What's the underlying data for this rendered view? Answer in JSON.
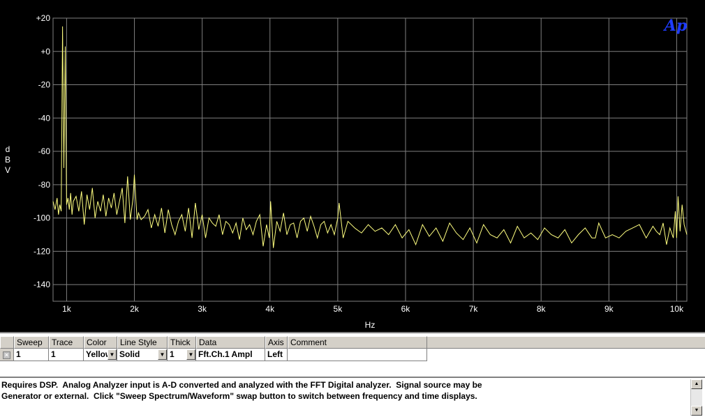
{
  "chart_data": {
    "type": "line",
    "title": "",
    "xlabel": "Hz",
    "ylabel": "dBV",
    "ylabel_chars": [
      "d",
      "B",
      "V"
    ],
    "logo_text": "Ap",
    "xlim": [
      800,
      10150
    ],
    "ylim": [
      -150,
      20
    ],
    "xticks": [
      1000,
      2000,
      3000,
      4000,
      5000,
      6000,
      7000,
      8000,
      9000,
      10000
    ],
    "xtick_labels": [
      "1k",
      "2k",
      "3k",
      "4k",
      "5k",
      "6k",
      "7k",
      "8k",
      "9k",
      "10k"
    ],
    "yticks": [
      20,
      0,
      -20,
      -40,
      -60,
      -80,
      -100,
      -120,
      -140
    ],
    "ytick_labels": [
      "+20",
      "+0",
      "-20",
      "-40",
      "-60",
      "-80",
      "-100",
      "-120",
      "-140"
    ],
    "grid": true,
    "colors": {
      "background": "#000000",
      "grid": "#7f7f7f",
      "trace": "#ffff80",
      "logo": "#1e3cff"
    },
    "series": [
      {
        "x": [
          800,
          830,
          860,
          880,
          900,
          920,
          940,
          960,
          980,
          1000,
          1020,
          1040,
          1060,
          1080,
          1100,
          1140,
          1180,
          1220,
          1260,
          1300,
          1340,
          1380,
          1420,
          1460,
          1500,
          1540,
          1580,
          1620,
          1660,
          1700,
          1740,
          1780,
          1820,
          1860,
          1900,
          1940,
          1980,
          2000,
          2020,
          2040,
          2060,
          2100,
          2150,
          2200,
          2250,
          2300,
          2350,
          2400,
          2450,
          2500,
          2550,
          2600,
          2650,
          2700,
          2750,
          2800,
          2850,
          2900,
          2950,
          3000,
          3050,
          3100,
          3150,
          3200,
          3250,
          3300,
          3350,
          3400,
          3450,
          3500,
          3550,
          3600,
          3650,
          3700,
          3750,
          3800,
          3850,
          3900,
          3950,
          3990,
          4010,
          4050,
          4100,
          4150,
          4200,
          4250,
          4300,
          4350,
          4400,
          4450,
          4500,
          4550,
          4600,
          4650,
          4700,
          4750,
          4800,
          4850,
          4900,
          4950,
          5000,
          5020,
          5080,
          5150,
          5250,
          5350,
          5450,
          5550,
          5650,
          5750,
          5850,
          5950,
          6050,
          6150,
          6250,
          6350,
          6450,
          6550,
          6650,
          6750,
          6850,
          6950,
          7050,
          7150,
          7250,
          7350,
          7450,
          7550,
          7650,
          7750,
          7850,
          7950,
          8050,
          8150,
          8250,
          8350,
          8450,
          8550,
          8650,
          8750,
          8800,
          8850,
          8950,
          9050,
          9150,
          9250,
          9350,
          9450,
          9550,
          9650,
          9700,
          9750,
          9800,
          9850,
          9900,
          9950,
          9980,
          10000,
          10020,
          10050,
          10080,
          10110,
          10150
        ],
        "y": [
          -90,
          -95,
          -88,
          -98,
          -92,
          -96,
          15,
          -70,
          3,
          -92,
          -88,
          -95,
          -85,
          -98,
          -90,
          -87,
          -96,
          -84,
          -104,
          -86,
          -95,
          -82,
          -100,
          -90,
          -96,
          -86,
          -99,
          -88,
          -94,
          -85,
          -98,
          -90,
          -82,
          -103,
          -75,
          -101,
          -88,
          -74,
          -88,
          -101,
          -97,
          -101,
          -99,
          -95,
          -106,
          -98,
          -105,
          -94,
          -109,
          -95,
          -104,
          -110,
          -102,
          -98,
          -108,
          -94,
          -112,
          -91,
          -107,
          -98,
          -112,
          -100,
          -103,
          -105,
          -98,
          -110,
          -102,
          -104,
          -109,
          -103,
          -113,
          -100,
          -107,
          -104,
          -110,
          -102,
          -98,
          -117,
          -104,
          -112,
          -90,
          -118,
          -102,
          -108,
          -97,
          -110,
          -104,
          -103,
          -112,
          -102,
          -100,
          -108,
          -99,
          -105,
          -112,
          -104,
          -102,
          -109,
          -104,
          -110,
          -100,
          -91,
          -112,
          -102,
          -106,
          -109,
          -104,
          -108,
          -106,
          -110,
          -104,
          -112,
          -107,
          -116,
          -104,
          -111,
          -106,
          -114,
          -103,
          -109,
          -113,
          -106,
          -115,
          -104,
          -110,
          -112,
          -107,
          -115,
          -105,
          -112,
          -109,
          -113,
          -106,
          -110,
          -112,
          -107,
          -115,
          -110,
          -106,
          -112,
          -112,
          -103,
          -112,
          -110,
          -112,
          -108,
          -106,
          -104,
          -112,
          -105,
          -108,
          -110,
          -103,
          -116,
          -106,
          -112,
          -96,
          -112,
          -87,
          -108,
          -92,
          -104,
          -110
        ]
      }
    ]
  },
  "table": {
    "headers": [
      "Sweep",
      "Trace",
      "Color",
      "Line Style",
      "Thick",
      "Data",
      "Axis",
      "Comment"
    ],
    "row": {
      "enabled_mark": "×",
      "sweep": "1",
      "trace": "1",
      "color": "Yellow",
      "line_style": "Solid",
      "thick": "1",
      "data": "Fft.Ch.1 Ampl",
      "axis": "Left",
      "comment": ""
    }
  },
  "comment_box": {
    "text": "Requires DSP.  Analog Analyzer input is A-D converted and analyzed with the FFT Digital analyzer.  Signal source may be\nGenerator or external.  Click \"Sweep Spectrum/Waveform\" swap button to switch between frequency and time displays."
  }
}
